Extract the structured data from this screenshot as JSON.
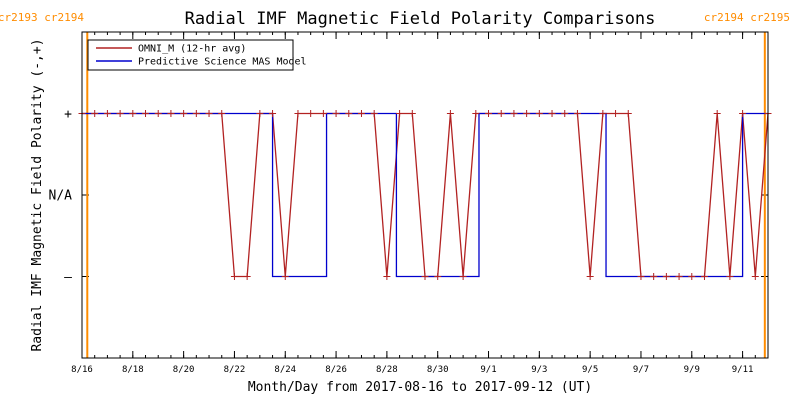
{
  "chart_data": {
    "type": "line",
    "title": "Radial IMF Magnetic Field Polarity Comparisons",
    "xlabel": "Month/Day from 2017-08-16 to 2017-09-12 (UT)",
    "ylabel": "Radial IMF Magnetic Field Polarity (-,+)",
    "x_range": [
      "2017-08-16T00:00",
      "2017-09-12T00:00"
    ],
    "x_ticks": [
      {
        "date": "2017-08-16",
        "label": "8/16"
      },
      {
        "date": "2017-08-18",
        "label": "8/18"
      },
      {
        "date": "2017-08-20",
        "label": "8/20"
      },
      {
        "date": "2017-08-22",
        "label": "8/22"
      },
      {
        "date": "2017-08-24",
        "label": "8/24"
      },
      {
        "date": "2017-08-26",
        "label": "8/26"
      },
      {
        "date": "2017-08-28",
        "label": "8/28"
      },
      {
        "date": "2017-08-30",
        "label": "8/30"
      },
      {
        "date": "2017-09-01",
        "label": "9/1"
      },
      {
        "date": "2017-09-03",
        "label": "9/3"
      },
      {
        "date": "2017-09-05",
        "label": "9/5"
      },
      {
        "date": "2017-09-07",
        "label": "9/7"
      },
      {
        "date": "2017-09-09",
        "label": "9/9"
      },
      {
        "date": "2017-09-11",
        "label": "9/11"
      }
    ],
    "y_categories": [
      {
        "value": 1,
        "label": "+"
      },
      {
        "value": 0,
        "label": "N/A"
      },
      {
        "value": -1,
        "label": "–"
      }
    ],
    "ylim": [
      -2,
      2
    ],
    "legend_position": "top-left",
    "carrington_markers": [
      {
        "date": "2017-08-16T05:00",
        "label": "cr2193 cr2194",
        "color": "#FF8C00",
        "label_side": "left"
      },
      {
        "date": "2017-09-11T21:00",
        "label": "cr2194 cr2195",
        "color": "#FF8C00",
        "label_side": "right"
      }
    ],
    "series": [
      {
        "name": "OMNI_M (12-hr avg)",
        "color": "#B22222",
        "markers": true,
        "points": [
          [
            "2017-08-16T00:00",
            1
          ],
          [
            "2017-08-16T12:00",
            1
          ],
          [
            "2017-08-17T00:00",
            1
          ],
          [
            "2017-08-17T12:00",
            1
          ],
          [
            "2017-08-18T00:00",
            1
          ],
          [
            "2017-08-18T12:00",
            1
          ],
          [
            "2017-08-19T00:00",
            1
          ],
          [
            "2017-08-19T12:00",
            1
          ],
          [
            "2017-08-20T00:00",
            1
          ],
          [
            "2017-08-20T12:00",
            1
          ],
          [
            "2017-08-21T00:00",
            1
          ],
          [
            "2017-08-21T12:00",
            1
          ],
          [
            "2017-08-22T00:00",
            -1
          ],
          [
            "2017-08-22T12:00",
            -1
          ],
          [
            "2017-08-23T00:00",
            1
          ],
          [
            "2017-08-23T12:00",
            1
          ],
          [
            "2017-08-24T00:00",
            -1
          ],
          [
            "2017-08-24T12:00",
            1
          ],
          [
            "2017-08-25T00:00",
            1
          ],
          [
            "2017-08-25T12:00",
            1
          ],
          [
            "2017-08-26T00:00",
            1
          ],
          [
            "2017-08-26T12:00",
            1
          ],
          [
            "2017-08-27T00:00",
            1
          ],
          [
            "2017-08-27T12:00",
            1
          ],
          [
            "2017-08-28T00:00",
            -1
          ],
          [
            "2017-08-28T12:00",
            1
          ],
          [
            "2017-08-29T00:00",
            1
          ],
          [
            "2017-08-29T12:00",
            -1
          ],
          [
            "2017-08-30T00:00",
            -1
          ],
          [
            "2017-08-30T12:00",
            1
          ],
          [
            "2017-08-31T00:00",
            -1
          ],
          [
            "2017-08-31T12:00",
            1
          ],
          [
            "2017-09-01T00:00",
            1
          ],
          [
            "2017-09-01T12:00",
            1
          ],
          [
            "2017-09-02T00:00",
            1
          ],
          [
            "2017-09-02T12:00",
            1
          ],
          [
            "2017-09-03T00:00",
            1
          ],
          [
            "2017-09-03T12:00",
            1
          ],
          [
            "2017-09-04T00:00",
            1
          ],
          [
            "2017-09-04T12:00",
            1
          ],
          [
            "2017-09-05T00:00",
            -1
          ],
          [
            "2017-09-05T12:00",
            1
          ],
          [
            "2017-09-06T00:00",
            1
          ],
          [
            "2017-09-06T12:00",
            1
          ],
          [
            "2017-09-07T00:00",
            -1
          ],
          [
            "2017-09-07T12:00",
            -1
          ],
          [
            "2017-09-08T00:00",
            -1
          ],
          [
            "2017-09-08T12:00",
            -1
          ],
          [
            "2017-09-09T00:00",
            -1
          ],
          [
            "2017-09-09T12:00",
            -1
          ],
          [
            "2017-09-10T00:00",
            1
          ],
          [
            "2017-09-10T12:00",
            -1
          ],
          [
            "2017-09-11T00:00",
            1
          ],
          [
            "2017-09-11T12:00",
            -1
          ],
          [
            "2017-09-12T00:00",
            1
          ]
        ]
      },
      {
        "name": "Predictive Science MAS Model",
        "color": "#0000CD",
        "markers": false,
        "points": [
          [
            "2017-08-16T00:00",
            1
          ],
          [
            "2017-08-23T12:00",
            1
          ],
          [
            "2017-08-23T12:00",
            -1
          ],
          [
            "2017-08-25T15:00",
            -1
          ],
          [
            "2017-08-25T15:00",
            1
          ],
          [
            "2017-08-28T09:00",
            1
          ],
          [
            "2017-08-28T09:00",
            -1
          ],
          [
            "2017-08-31T15:00",
            -1
          ],
          [
            "2017-08-31T15:00",
            1
          ],
          [
            "2017-09-05T15:00",
            1
          ],
          [
            "2017-09-05T15:00",
            -1
          ],
          [
            "2017-09-11T00:00",
            -1
          ],
          [
            "2017-09-11T00:00",
            1
          ],
          [
            "2017-09-12T00:00",
            1
          ]
        ]
      }
    ]
  }
}
